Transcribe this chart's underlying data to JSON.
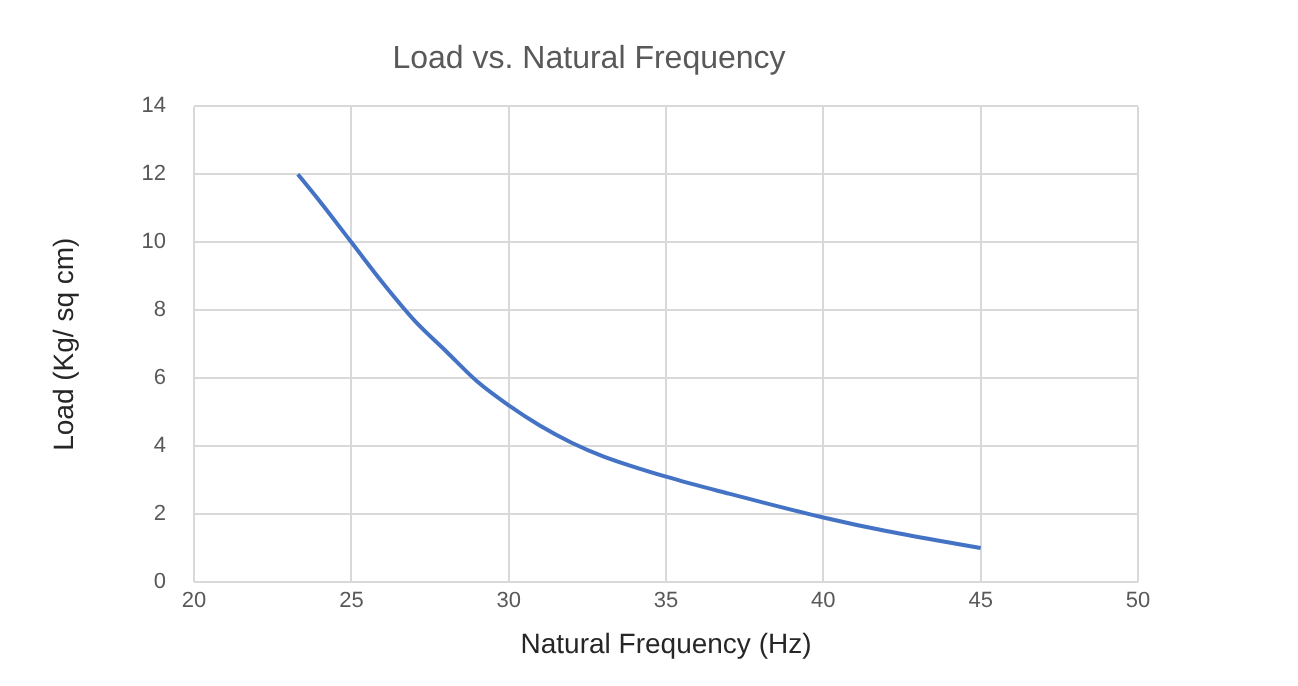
{
  "chart_data": {
    "type": "line",
    "title": "Load vs. Natural Frequency",
    "xlabel": "Natural Frequency (Hz)",
    "ylabel": "Load (Kg/ sq cm)",
    "series": [
      {
        "color": "#4472c4",
        "x": [
          23.3,
          24,
          25,
          26,
          27,
          28,
          29,
          30,
          31,
          32,
          33,
          35,
          37,
          40,
          42,
          45
        ],
        "values": [
          12.0,
          11.2,
          10.0,
          8.8,
          7.7,
          6.8,
          5.9,
          5.2,
          4.6,
          4.1,
          3.7,
          3.1,
          2.6,
          1.9,
          1.5,
          1.0
        ]
      }
    ],
    "xlim": [
      20,
      50
    ],
    "xticks": [
      20,
      25,
      30,
      35,
      40,
      45,
      50
    ],
    "ylim": [
      0,
      14
    ],
    "yticks": [
      0,
      2,
      4,
      6,
      8,
      10,
      12,
      14
    ],
    "grid": true,
    "legend": false,
    "marker": "none",
    "line_style": "solid"
  }
}
